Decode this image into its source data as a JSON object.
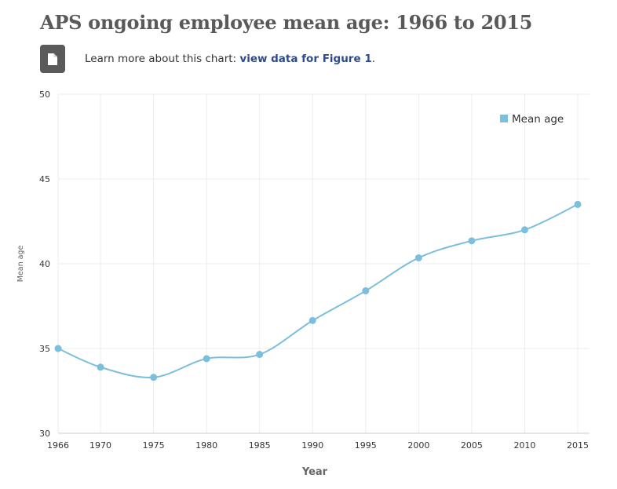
{
  "page": {
    "title": "APS ongoing employee mean age: 1966 to 2015",
    "link_prefix": "Learn more about this chart: ",
    "link_label": "view data for Figure 1",
    "link_suffix": "."
  },
  "colors": {
    "series": "#7bbfdc",
    "grid": "#ececec",
    "doc_button": "#5a5a5a",
    "link": "#2e4a8c"
  },
  "icons": {
    "doc_button": "document-icon"
  },
  "chart_data": {
    "type": "line",
    "title": "APS ongoing employee mean age: 1966 to 2015",
    "xlabel": "Year",
    "ylabel": "Mean age",
    "x_ticks": [
      "1966",
      "1970",
      "1975",
      "1980",
      "1985",
      "1990",
      "1995",
      "2000",
      "2005",
      "2010",
      "2015"
    ],
    "y_ticks": [
      "30",
      "35",
      "40",
      "45",
      "50"
    ],
    "ylim": [
      30,
      50
    ],
    "grid": true,
    "legend_position": "top-right",
    "series": [
      {
        "name": "Mean age",
        "x": [
          1966,
          1970,
          1975,
          1980,
          1985,
          1990,
          1995,
          2000,
          2005,
          2010,
          2015
        ],
        "values": [
          35.0,
          33.9,
          33.3,
          34.4,
          34.65,
          36.65,
          38.4,
          40.35,
          41.35,
          42.0,
          43.5
        ]
      }
    ]
  }
}
